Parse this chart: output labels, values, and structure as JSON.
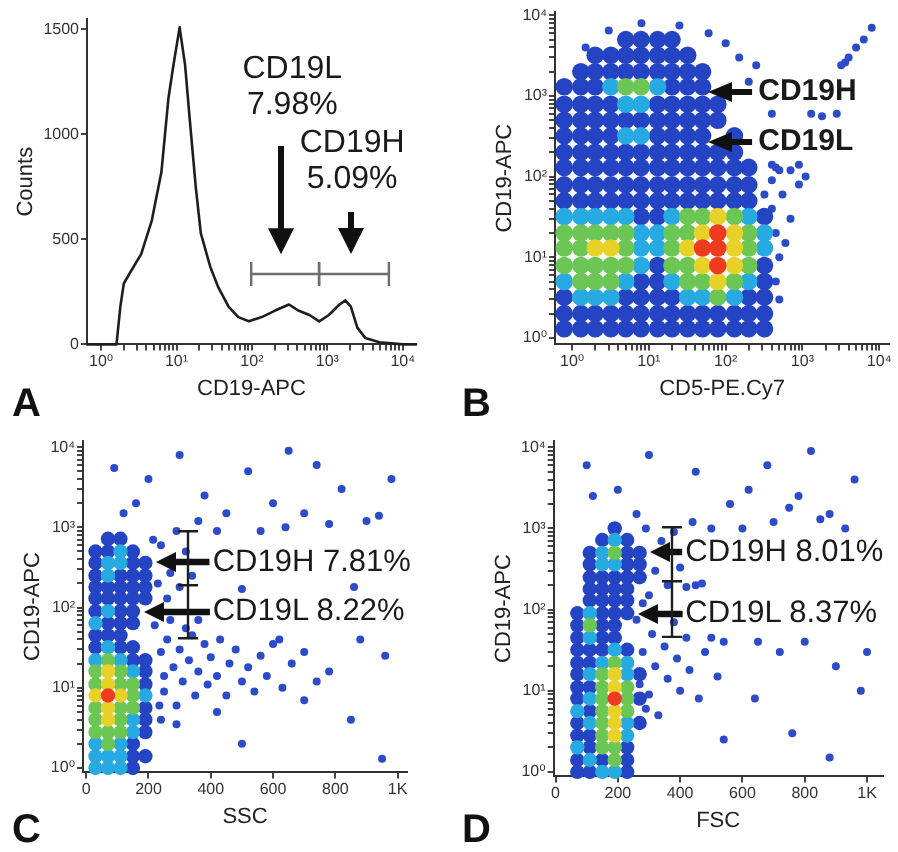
{
  "chart_data": [
    {
      "type": "line",
      "xlabel": "CD19-APC",
      "ylabel": "Counts",
      "log": "x",
      "xlim": [
        0.65,
        15000
      ],
      "ylim": [
        0,
        1550
      ],
      "xticks": [
        {
          "value": 1,
          "label": "10⁰"
        },
        {
          "value": 2,
          "label": null
        },
        {
          "value": 3,
          "label": null
        },
        {
          "value": 4,
          "label": null
        },
        {
          "value": 5,
          "label": null
        },
        {
          "value": 6,
          "label": null
        },
        {
          "value": 7,
          "label": null
        },
        {
          "value": 8,
          "label": null
        },
        {
          "value": 9,
          "label": null
        },
        {
          "value": 10,
          "label": "10¹"
        },
        {
          "value": 20,
          "label": null
        },
        {
          "value": 30,
          "label": null
        },
        {
          "value": 40,
          "label": null
        },
        {
          "value": 50,
          "label": null
        },
        {
          "value": 60,
          "label": null
        },
        {
          "value": 70,
          "label": null
        },
        {
          "value": 80,
          "label": null
        },
        {
          "value": 90,
          "label": null
        },
        {
          "value": 100,
          "label": "10²"
        },
        {
          "value": 200,
          "label": null
        },
        {
          "value": 300,
          "label": null
        },
        {
          "value": 400,
          "label": null
        },
        {
          "value": 500,
          "label": null
        },
        {
          "value": 600,
          "label": null
        },
        {
          "value": 700,
          "label": null
        },
        {
          "value": 800,
          "label": null
        },
        {
          "value": 900,
          "label": null
        },
        {
          "value": 1000,
          "label": "10³"
        },
        {
          "value": 2000,
          "label": null
        },
        {
          "value": 3000,
          "label": null
        },
        {
          "value": 4000,
          "label": null
        },
        {
          "value": 5000,
          "label": null
        },
        {
          "value": 6000,
          "label": null
        },
        {
          "value": 7000,
          "label": null
        },
        {
          "value": 8000,
          "label": null
        },
        {
          "value": 9000,
          "label": null
        },
        {
          "value": 10000,
          "label": "10⁴"
        }
      ],
      "yticks": [
        0,
        500,
        1000,
        1500
      ],
      "x": [
        0.65,
        1.6,
        1.8,
        2,
        2.5,
        3.4,
        4.7,
        6.3,
        7.8,
        9.1,
        11,
        13,
        15,
        18,
        21,
        28,
        36,
        49,
        66,
        91,
        135,
        200,
        310,
        420,
        580,
        780,
        1050,
        1450,
        1740,
        2050,
        2500,
        3200,
        4900,
        10000,
        15000
      ],
      "series": [
        {
          "color": "#1e1e1e",
          "values": [
            0,
            0,
            180,
            290,
            350,
            430,
            590,
            820,
            1170,
            1330,
            1510,
            1330,
            1070,
            750,
            530,
            370,
            270,
            180,
            130,
            110,
            130,
            160,
            190,
            160,
            140,
            110,
            140,
            190,
            210,
            180,
            80,
            30,
            10,
            0,
            0
          ]
        }
      ],
      "annotations": [
        "A",
        "CD19L\n7.98%",
        "CD19H\n5.09%"
      ]
    },
    {
      "type": "scatter",
      "xlabel": "CD5-PE.Cy7",
      "ylabel": "CD19-APC",
      "log": "xy",
      "marker": "circle",
      "xlim": [
        0.63,
        13500
      ],
      "ylim": [
        0.83,
        11000
      ],
      "xticks": [
        {
          "value": 1,
          "label": "10⁰"
        },
        {
          "value": 2,
          "label": null
        },
        {
          "value": 3,
          "label": null
        },
        {
          "value": 4,
          "label": null
        },
        {
          "value": 5,
          "label": null
        },
        {
          "value": 6,
          "label": null
        },
        {
          "value": 7,
          "label": null
        },
        {
          "value": 8,
          "label": null
        },
        {
          "value": 9,
          "label": null
        },
        {
          "value": 10,
          "label": "10¹"
        },
        {
          "value": 20,
          "label": null
        },
        {
          "value": 30,
          "label": null
        },
        {
          "value": 40,
          "label": null
        },
        {
          "value": 50,
          "label": null
        },
        {
          "value": 60,
          "label": null
        },
        {
          "value": 70,
          "label": null
        },
        {
          "value": 80,
          "label": null
        },
        {
          "value": 90,
          "label": null
        },
        {
          "value": 100,
          "label": "10²"
        },
        {
          "value": 200,
          "label": null
        },
        {
          "value": 300,
          "label": null
        },
        {
          "value": 400,
          "label": null
        },
        {
          "value": 500,
          "label": null
        },
        {
          "value": 600,
          "label": null
        },
        {
          "value": 700,
          "label": null
        },
        {
          "value": 800,
          "label": null
        },
        {
          "value": 900,
          "label": null
        },
        {
          "value": 1000,
          "label": "10³"
        },
        {
          "value": 2000,
          "label": null
        },
        {
          "value": 3000,
          "label": null
        },
        {
          "value": 4000,
          "label": null
        },
        {
          "value": 5000,
          "label": null
        },
        {
          "value": 6000,
          "label": null
        },
        {
          "value": 7000,
          "label": null
        },
        {
          "value": 8000,
          "label": null
        },
        {
          "value": 9000,
          "label": null
        },
        {
          "value": 10000,
          "label": "10⁴"
        }
      ],
      "yticks": [
        {
          "value": 1,
          "label": "10⁰"
        },
        {
          "value": 2,
          "label": null
        },
        {
          "value": 3,
          "label": null
        },
        {
          "value": 4,
          "label": null
        },
        {
          "value": 5,
          "label": null
        },
        {
          "value": 6,
          "label": null
        },
        {
          "value": 7,
          "label": null
        },
        {
          "value": 8,
          "label": null
        },
        {
          "value": 9,
          "label": null
        },
        {
          "value": 10,
          "label": "10¹"
        },
        {
          "value": 20,
          "label": null
        },
        {
          "value": 30,
          "label": null
        },
        {
          "value": 40,
          "label": null
        },
        {
          "value": 50,
          "label": null
        },
        {
          "value": 60,
          "label": null
        },
        {
          "value": 70,
          "label": null
        },
        {
          "value": 80,
          "label": null
        },
        {
          "value": 90,
          "label": null
        },
        {
          "value": 100,
          "label": "10²"
        },
        {
          "value": 200,
          "label": null
        },
        {
          "value": 300,
          "label": null
        },
        {
          "value": 400,
          "label": null
        },
        {
          "value": 500,
          "label": null
        },
        {
          "value": 600,
          "label": null
        },
        {
          "value": 700,
          "label": null
        },
        {
          "value": 800,
          "label": null
        },
        {
          "value": 900,
          "label": null
        },
        {
          "value": 1000,
          "label": "10³"
        },
        {
          "value": 2000,
          "label": null
        },
        {
          "value": 3000,
          "label": null
        },
        {
          "value": 4000,
          "label": null
        },
        {
          "value": 5000,
          "label": null
        },
        {
          "value": 6000,
          "label": null
        },
        {
          "value": 7000,
          "label": null
        },
        {
          "value": 8000,
          "label": null
        },
        {
          "value": 9000,
          "label": null
        },
        {
          "value": 10000,
          "label": "10⁴"
        }
      ],
      "series": [
        {
          "color": "#2c4bc9",
          "x": [
            320,
            400,
            500,
            1300,
            3200,
            4000,
            5000,
            6300,
            8000,
            400,
            450,
            700,
            900,
            1800,
            2800,
            3600,
            550,
            700,
            900,
            1100,
            400,
            450,
            500,
            450,
            500,
            600,
            3,
            8,
            25,
            60,
            100,
            150,
            250,
            200,
            400,
            1.5
          ],
          "values": [
            60,
            90,
            120,
            600,
            2400,
            3000,
            4000,
            5000,
            7000,
            40,
            130,
            120,
            140,
            560,
            600,
            2600,
            60,
            30,
            80,
            100,
            140,
            20,
            10,
            5,
            3,
            15,
            6500,
            8000,
            7500,
            6000,
            4500,
            3000,
            2400,
            1500,
            600,
            4000
          ]
        },
        {
          "color": "#2444c4",
          "x": [
            0.79,
            1.3,
            2,
            3.2,
            5,
            7.9,
            13,
            20,
            32,
            50,
            79,
            130,
            200,
            320,
            0.79,
            1.3,
            2,
            3.2,
            5,
            7.9,
            13,
            20,
            32,
            50,
            79,
            130,
            200,
            320,
            0.79,
            5,
            7.9,
            13,
            20,
            200,
            320,
            7.9,
            13,
            320,
            13,
            320,
            7.9,
            13,
            320,
            0.79,
            1.3,
            2,
            3.2,
            5,
            7.9,
            13,
            20,
            32,
            50,
            79,
            130,
            200,
            0.79,
            1.3,
            2,
            3.2,
            5,
            7.9,
            13,
            20,
            32,
            50,
            79,
            130,
            200,
            0.79,
            1.3,
            2,
            3.2,
            5,
            7.9,
            13,
            20,
            32,
            50,
            79,
            130,
            200,
            0.79,
            1.3,
            2,
            3.2,
            5,
            7.9,
            13,
            20,
            32,
            50,
            79,
            130,
            0.79,
            1.3,
            2,
            3.2,
            13,
            20,
            32,
            50,
            130,
            0.79,
            1.3,
            2,
            3.2,
            5,
            7.9,
            13,
            20,
            32,
            50,
            79,
            0.79,
            1.3,
            2,
            3.2,
            13,
            20,
            32,
            50,
            79,
            0.79,
            1.3,
            2,
            20,
            32,
            50,
            1.3,
            2,
            3.2,
            5,
            7.9,
            13,
            20,
            32,
            50,
            2,
            3.2,
            5,
            7.9,
            13,
            20,
            32,
            5,
            7.9,
            13,
            20
          ],
          "values": [
            1.3,
            1.3,
            1.3,
            1.3,
            1.3,
            1.3,
            1.3,
            1.3,
            1.3,
            1.3,
            1.3,
            1.3,
            1.3,
            1.3,
            2,
            2,
            2,
            2,
            2,
            2,
            2,
            2,
            2,
            2,
            2,
            2,
            2,
            2,
            3.2,
            3.2,
            3.2,
            3.2,
            3.2,
            3.2,
            3.2,
            5,
            5,
            5,
            7.9,
            7.9,
            32,
            32,
            32,
            50,
            50,
            50,
            50,
            50,
            50,
            50,
            50,
            50,
            50,
            50,
            50,
            50,
            79,
            79,
            79,
            79,
            79,
            79,
            79,
            79,
            79,
            79,
            79,
            79,
            79,
            130,
            130,
            130,
            130,
            130,
            130,
            130,
            130,
            130,
            130,
            130,
            130,
            130,
            200,
            200,
            200,
            200,
            200,
            200,
            200,
            200,
            200,
            200,
            200,
            200,
            320,
            320,
            320,
            320,
            320,
            320,
            320,
            320,
            320,
            500,
            500,
            500,
            500,
            500,
            500,
            500,
            500,
            500,
            500,
            500,
            790,
            790,
            790,
            790,
            790,
            790,
            790,
            790,
            790,
            1300,
            1300,
            1300,
            1300,
            1300,
            1300,
            2000,
            2000,
            2000,
            2000,
            2000,
            2000,
            2000,
            2000,
            2000,
            3200,
            3200,
            3200,
            3200,
            3200,
            3200,
            3200,
            5000,
            5000,
            5000,
            5000
          ]
        },
        {
          "color": "#27a9e1",
          "x": [
            0.79,
            1.3,
            2,
            3.2,
            5,
            0.79,
            5,
            7.9,
            7.9,
            7.9,
            1.3,
            2,
            3.2,
            13,
            13,
            20,
            20,
            32,
            50,
            130,
            200,
            200,
            320,
            320,
            3.2,
            13,
            5,
            7.9,
            5,
            7.9
          ],
          "values": [
            32,
            32,
            32,
            32,
            32,
            5,
            5,
            7.9,
            13,
            20,
            3.2,
            3.2,
            3.2,
            13,
            20,
            5,
            32,
            3.2,
            3.2,
            3.2,
            5,
            32,
            13,
            20,
            1300,
            1300,
            790,
            790,
            320,
            320
          ]
        },
        {
          "color": "#6cc654",
          "x": [
            0.79,
            0.79,
            0.79,
            1.3,
            1.3,
            1.3,
            2,
            2,
            3.2,
            3.2,
            5,
            5,
            5,
            1.3,
            2,
            3.2,
            20,
            20,
            20,
            32,
            32,
            32,
            32,
            50,
            50,
            130,
            130,
            200,
            200,
            200,
            79,
            5,
            7.9
          ],
          "values": [
            7.9,
            13,
            20,
            7.9,
            13,
            20,
            7.9,
            20,
            7.9,
            20,
            7.9,
            13,
            20,
            5,
            5,
            5,
            7.9,
            13,
            20,
            5,
            7.9,
            20,
            32,
            5,
            32,
            5,
            32,
            7.9,
            13,
            20,
            3.2,
            1300,
            1300
          ]
        },
        {
          "color": "#e8d22a",
          "x": [
            2,
            3.2,
            32,
            50,
            50,
            130,
            130,
            130,
            79,
            79
          ],
          "values": [
            13,
            13,
            13,
            7.9,
            20,
            7.9,
            13,
            20,
            5,
            32
          ]
        },
        {
          "color": "#ee3b1f",
          "x": [
            79,
            79,
            79,
            50
          ],
          "values": [
            7.9,
            13,
            20,
            13
          ]
        }
      ],
      "annotations": [
        "B",
        "CD19H",
        "CD19L"
      ]
    },
    {
      "type": "scatter",
      "xlabel": "SSC",
      "ylabel": "CD19-APC",
      "log": "y",
      "marker": "circle",
      "xlim": [
        -10,
        1030
      ],
      "ylim": [
        0.88,
        12000
      ],
      "xticks": [
        0,
        200,
        400,
        600,
        800,
        {
          "value": 1000,
          "label": "1K"
        }
      ],
      "yticks": [
        {
          "value": 1,
          "label": "10⁰"
        },
        {
          "value": 2,
          "label": null
        },
        {
          "value": 3,
          "label": null
        },
        {
          "value": 4,
          "label": null
        },
        {
          "value": 5,
          "label": null
        },
        {
          "value": 6,
          "label": null
        },
        {
          "value": 7,
          "label": null
        },
        {
          "value": 8,
          "label": null
        },
        {
          "value": 9,
          "label": null
        },
        {
          "value": 10,
          "label": "10¹"
        },
        {
          "value": 20,
          "label": null
        },
        {
          "value": 30,
          "label": null
        },
        {
          "value": 40,
          "label": null
        },
        {
          "value": 50,
          "label": null
        },
        {
          "value": 60,
          "label": null
        },
        {
          "value": 70,
          "label": null
        },
        {
          "value": 80,
          "label": null
        },
        {
          "value": 90,
          "label": null
        },
        {
          "value": 100,
          "label": "10²"
        },
        {
          "value": 200,
          "label": null
        },
        {
          "value": 300,
          "label": null
        },
        {
          "value": 400,
          "label": null
        },
        {
          "value": 500,
          "label": null
        },
        {
          "value": 600,
          "label": null
        },
        {
          "value": 700,
          "label": null
        },
        {
          "value": 800,
          "label": null
        },
        {
          "value": 900,
          "label": null
        },
        {
          "value": 1000,
          "label": "10³"
        },
        {
          "value": 2000,
          "label": null
        },
        {
          "value": 3000,
          "label": null
        },
        {
          "value": 4000,
          "label": null
        },
        {
          "value": 5000,
          "label": null
        },
        {
          "value": 6000,
          "label": null
        },
        {
          "value": 7000,
          "label": null
        },
        {
          "value": 8000,
          "label": null
        },
        {
          "value": 9000,
          "label": null
        },
        {
          "value": 10000,
          "label": "10⁴"
        }
      ],
      "series": [
        {
          "color": "#2c4bc9",
          "x": [
            235,
            250,
            240,
            250,
            260,
            280,
            290,
            300,
            310,
            330,
            340,
            350,
            360,
            380,
            390,
            400,
            420,
            430,
            450,
            460,
            480,
            500,
            520,
            540,
            560,
            580,
            600,
            630,
            660,
            700,
            740,
            780,
            220,
            270,
            320,
            360,
            240,
            290,
            420,
            230,
            215,
            240,
            260,
            270,
            290,
            300,
            320,
            340,
            360,
            380,
            420,
            450,
            500,
            520,
            560,
            600,
            640,
            700,
            740,
            780,
            820,
            860,
            900,
            940,
            980,
            160,
            200,
            120,
            90,
            620,
            880,
            960,
            700,
            850,
            500,
            950,
            300,
            650
          ],
          "values": [
            6,
            14,
            28,
            9,
            40,
            18,
            6,
            30,
            12,
            22,
            45,
            8,
            16,
            35,
            11,
            24,
            14,
            40,
            8,
            20,
            30,
            12,
            18,
            9,
            25,
            14,
            35,
            10,
            20,
            28,
            12,
            16,
            60,
            70,
            55,
            70,
            4,
            3.5,
            5,
            200,
            700,
            600,
            130,
            270,
            900,
            180,
            500,
            250,
            1200,
            2500,
            900,
            1500,
            170,
            5000,
            900,
            2000,
            1000,
            1500,
            6000,
            1100,
            3000,
            180,
            1200,
            1400,
            4000,
            2000,
            4000,
            1500,
            5500,
            40,
            40,
            25,
            7,
            4,
            2,
            1.3,
            8000,
            9000
          ]
        },
        {
          "color": "#2444c4",
          "x": [
            150,
            150,
            150,
            150,
            190,
            190,
            190,
            190,
            190,
            190,
            190,
            30,
            110,
            150,
            30,
            70,
            110,
            70,
            110,
            150,
            30,
            110,
            150,
            30,
            70,
            110,
            150,
            190,
            30,
            70,
            110,
            150,
            190,
            30,
            110,
            150,
            190,
            30,
            150,
            190,
            30,
            70,
            150,
            70,
            110
          ],
          "values": [
            1,
            1.4,
            2,
            22,
            1.4,
            2.8,
            4,
            5.6,
            11,
            16,
            22,
            32,
            32,
            32,
            45,
            45,
            45,
            64,
            64,
            64,
            90,
            90,
            90,
            130,
            130,
            130,
            130,
            130,
            180,
            180,
            180,
            180,
            180,
            250,
            250,
            250,
            250,
            360,
            360,
            360,
            500,
            500,
            500,
            720,
            720
          ]
        },
        {
          "color": "#27a9e1",
          "x": [
            30,
            30,
            30,
            30,
            70,
            70,
            70,
            110,
            110,
            110,
            110,
            150,
            150,
            150,
            190,
            70,
            110,
            110,
            70,
            70,
            30
          ],
          "values": [
            1,
            1.4,
            2,
            22,
            1,
            1.4,
            32,
            1,
            1.4,
            2,
            22,
            2.8,
            4,
            16,
            8,
            360,
            360,
            500,
            250,
            90,
            64
          ]
        },
        {
          "color": "#6cc654",
          "x": [
            30,
            30,
            30,
            30,
            30,
            70,
            70,
            70,
            110,
            110,
            110,
            110,
            110,
            150,
            150,
            150
          ],
          "values": [
            2.8,
            4,
            5.6,
            11,
            16,
            2,
            2.8,
            22,
            2.8,
            4,
            5.6,
            11,
            16,
            5.6,
            8,
            11
          ]
        },
        {
          "color": "#e8d22a",
          "x": [
            70,
            70,
            70,
            70,
            30,
            110
          ],
          "values": [
            4,
            5.6,
            11,
            16,
            8,
            8
          ]
        },
        {
          "color": "#ee3b1f",
          "x": [
            70
          ],
          "values": [
            8
          ]
        }
      ],
      "annotations": [
        "C",
        {
          "text": "CD19H 7.81%",
          "x": 190,
          "y": 360
        },
        {
          "text": "CD19L 8.22%",
          "x": 150,
          "y": 90
        }
      ]
    },
    {
      "type": "scatter",
      "xlabel": "FSC",
      "ylabel": "CD19-APC",
      "log": "y",
      "marker": "circle",
      "xlim": [
        -6,
        1050
      ],
      "ylim": [
        0.88,
        12000
      ],
      "xticks": [
        0,
        200,
        400,
        600,
        800,
        {
          "value": 1000,
          "label": "1K"
        }
      ],
      "yticks": [
        {
          "value": 1,
          "label": "10⁰"
        },
        {
          "value": 2,
          "label": null
        },
        {
          "value": 3,
          "label": null
        },
        {
          "value": 4,
          "label": null
        },
        {
          "value": 5,
          "label": null
        },
        {
          "value": 6,
          "label": null
        },
        {
          "value": 7,
          "label": null
        },
        {
          "value": 8,
          "label": null
        },
        {
          "value": 9,
          "label": null
        },
        {
          "value": 10,
          "label": "10¹"
        },
        {
          "value": 20,
          "label": null
        },
        {
          "value": 30,
          "label": null
        },
        {
          "value": 40,
          "label": null
        },
        {
          "value": 50,
          "label": null
        },
        {
          "value": 60,
          "label": null
        },
        {
          "value": 70,
          "label": null
        },
        {
          "value": 80,
          "label": null
        },
        {
          "value": 90,
          "label": null
        },
        {
          "value": 100,
          "label": "10²"
        },
        {
          "value": 200,
          "label": null
        },
        {
          "value": 300,
          "label": null
        },
        {
          "value": 400,
          "label": null
        },
        {
          "value": 500,
          "label": null
        },
        {
          "value": 600,
          "label": null
        },
        {
          "value": 700,
          "label": null
        },
        {
          "value": 800,
          "label": null
        },
        {
          "value": 900,
          "label": null
        },
        {
          "value": 1000,
          "label": "10³"
        },
        {
          "value": 2000,
          "label": null
        },
        {
          "value": 3000,
          "label": null
        },
        {
          "value": 4000,
          "label": null
        },
        {
          "value": 5000,
          "label": null
        },
        {
          "value": 6000,
          "label": null
        },
        {
          "value": 7000,
          "label": null
        },
        {
          "value": 8000,
          "label": null
        },
        {
          "value": 9000,
          "label": null
        },
        {
          "value": 10000,
          "label": "10⁴"
        }
      ],
      "series": [
        {
          "color": "#2c4bc9",
          "x": [
            290,
            270,
            280,
            300,
            310,
            320,
            330,
            350,
            360,
            380,
            390,
            400,
            420,
            430,
            450,
            460,
            480,
            500,
            520,
            540,
            300,
            320,
            340,
            360,
            380,
            400,
            420,
            440,
            470,
            500,
            290,
            260,
            260,
            280,
            560,
            600,
            620,
            650,
            680,
            700,
            720,
            750,
            780,
            800,
            820,
            850,
            880,
            900,
            930,
            960,
            1000,
            640,
            760,
            880,
            980,
            540,
            200,
            120,
            100,
            300,
            450
          ],
          "values": [
            6,
            12,
            30,
            9,
            50,
            20,
            5,
            35,
            14,
            70,
            25,
            10,
            45,
            18,
            200,
            8,
            30,
            45,
            15,
            40,
            150,
            300,
            700,
            200,
            900,
            330,
            190,
            1200,
            210,
            1000,
            1000,
            1500,
            75,
            120,
            2000,
            1000,
            3000,
            40,
            6000,
            1200,
            30,
            1800,
            2500,
            40,
            9000,
            1300,
            1500,
            20,
            1000,
            4000,
            30,
            8,
            3,
            1.5,
            10,
            2.5,
            3000,
            2500,
            6000,
            8000,
            5000
          ]
        },
        {
          "color": "#2444c4",
          "x": [
            70,
            70,
            70,
            70,
            70,
            70,
            70,
            70,
            70,
            70,
            70,
            70,
            110,
            110,
            110,
            110,
            110,
            110,
            110,
            150,
            150,
            150,
            150,
            150,
            190,
            190,
            190,
            190,
            150,
            110,
            110,
            150,
            190,
            230,
            110,
            150,
            190,
            230,
            110,
            230,
            270,
            110,
            230,
            270,
            150,
            230,
            190,
            230,
            230,
            230,
            270,
            270,
            270,
            230,
            270,
            230,
            230
          ],
          "values": [
            1,
            1.4,
            2.8,
            4,
            8,
            11,
            16,
            22,
            32,
            45,
            64,
            90,
            1,
            2,
            2.8,
            5.6,
            11,
            22,
            32,
            1.4,
            32,
            45,
            64,
            90,
            45,
            64,
            90,
            130,
            130,
            130,
            180,
            180,
            180,
            180,
            250,
            250,
            250,
            250,
            360,
            360,
            360,
            500,
            500,
            500,
            720,
            720,
            1000,
            1,
            1.4,
            2,
            4,
            8,
            16,
            32,
            250,
            130,
            90
          ]
        },
        {
          "color": "#27a9e1",
          "x": [
            70,
            70,
            110,
            110,
            110,
            110,
            150,
            150,
            190,
            190,
            230,
            230,
            230,
            230,
            110,
            110,
            150,
            190,
            150,
            190
          ],
          "values": [
            2,
            5.6,
            1.4,
            4,
            8,
            16,
            1,
            22,
            1,
            32,
            2.8,
            4,
            16,
            22,
            45,
            90,
            360,
            360,
            500,
            720
          ]
        },
        {
          "color": "#6cc654",
          "x": [
            150,
            150,
            150,
            150,
            150,
            150,
            150,
            190,
            190,
            190,
            230,
            230,
            230,
            110,
            190
          ],
          "values": [
            2,
            2.8,
            4,
            5.6,
            8,
            11,
            16,
            1.4,
            2,
            22,
            5.6,
            8,
            11,
            64,
            500
          ]
        },
        {
          "color": "#e8d22a",
          "x": [
            190,
            190,
            190,
            190,
            190
          ],
          "values": [
            2.8,
            4,
            5.6,
            11,
            16
          ]
        },
        {
          "color": "#ee3b1f",
          "x": [
            190
          ],
          "values": [
            8
          ]
        }
      ],
      "annotations": [
        "D",
        {
          "text": "CD19H 8.01%",
          "x": 270,
          "y": 500
        },
        {
          "text": "CD19L 8.37%",
          "x": 230,
          "y": 90
        }
      ]
    }
  ]
}
